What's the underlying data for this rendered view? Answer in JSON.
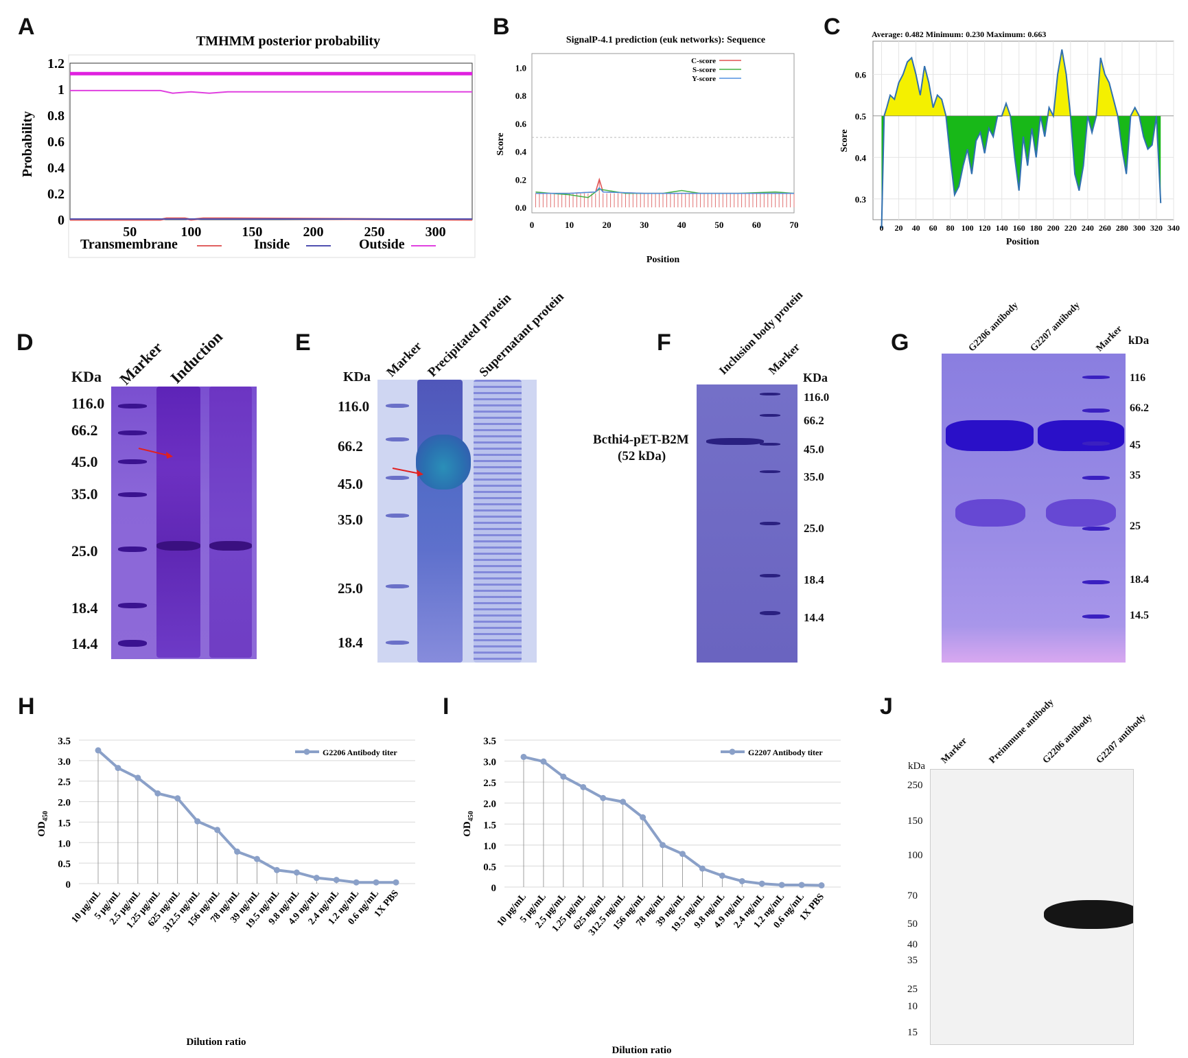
{
  "panels": {
    "A": {
      "label": "A",
      "title": "TMHMM posterior probability",
      "ylabel": "Probability",
      "legend": [
        "Transmembrane",
        "Inside",
        "Outside"
      ]
    },
    "B": {
      "label": "B",
      "title": "SignalP-4.1 prediction (euk networks): Sequence",
      "xlabel": "Position",
      "ylabel": "Score",
      "legend": [
        "C-score",
        "S-score",
        "Y-score"
      ]
    },
    "C": {
      "label": "C",
      "stats": "Average: 0.482  Minimum: 0.230  Maximum: 0.663",
      "xlabel": "Position",
      "ylabel": "Score"
    },
    "D": {
      "label": "D",
      "unit": "KDa",
      "lanes": [
        "Marker",
        "Induction"
      ],
      "mw": [
        "116.0",
        "66.2",
        "45.0",
        "35.0",
        "25.0",
        "18.4",
        "14.4"
      ]
    },
    "E": {
      "label": "E",
      "unit": "KDa",
      "lanes": [
        "Marker",
        "Precipitated protein",
        "Supernatant protein"
      ],
      "mw": [
        "116.0",
        "66.2",
        "45.0",
        "35.0",
        "25.0",
        "18.4"
      ]
    },
    "F": {
      "label": "F",
      "unit": "KDa",
      "lanes": [
        "Inclusion body protein",
        "Marker"
      ],
      "band_label": "Bcthi4-pET-B2M",
      "band_sub": "(52 kDa)",
      "mw": [
        "116.0",
        "66.2",
        "45.0",
        "35.0",
        "25.0",
        "18.4",
        "14.4"
      ]
    },
    "G": {
      "label": "G",
      "unit": "kDa",
      "lanes": [
        "G2206 antibody",
        "G2207 antibody",
        "Marker"
      ],
      "mw": [
        "116",
        "66.2",
        "45",
        "35",
        "25",
        "18.4",
        "14.5"
      ]
    },
    "H": {
      "label": "H",
      "xlabel": "Dilution ratio",
      "ylabel": "OD",
      "ylabel_sub": "450",
      "legend": "G2206 Antibody titer"
    },
    "I": {
      "label": "I",
      "xlabel": "Dilution ratio",
      "ylabel": "OD",
      "ylabel_sub": "450",
      "legend": "G2207 Antibody titer"
    },
    "J": {
      "label": "J",
      "unit": "kDa",
      "lanes": [
        "Marker",
        "Preimmune antibody",
        "G2206 antibody",
        "G2207 antibody"
      ],
      "mw": [
        "250",
        "150",
        "100",
        "70",
        "50",
        "40",
        "35",
        "25",
        "10",
        "15"
      ]
    }
  },
  "chart_data": [
    {
      "panel": "A",
      "type": "line",
      "title": "TMHMM posterior probability",
      "ylabel": "Probability",
      "xlim": [
        1,
        330
      ],
      "ylim": [
        0,
        1.2
      ],
      "xticks": [
        50,
        100,
        150,
        200,
        250,
        300
      ],
      "yticks": [
        0,
        0.2,
        0.4,
        0.6,
        0.8,
        1,
        1.2
      ],
      "series": [
        {
          "name": "Transmembrane",
          "color": "#e06060",
          "x": [
            1,
            75,
            80,
            95,
            100,
            110,
            130,
            330
          ],
          "y": [
            0,
            0,
            0.01,
            0.01,
            0,
            0.01,
            0.01,
            0
          ]
        },
        {
          "name": "Inside",
          "color": "#5050b0",
          "x": [
            1,
            330
          ],
          "y": [
            0.005,
            0.005
          ]
        },
        {
          "name": "Outside",
          "color": "#e040e0",
          "x": [
            1,
            75,
            85,
            100,
            115,
            130,
            330
          ],
          "y": [
            0.99,
            0.99,
            0.97,
            0.98,
            0.97,
            0.98,
            0.98
          ]
        },
        {
          "name": "",
          "color": "#e020e0",
          "x": [
            1,
            330
          ],
          "y": [
            1.12,
            1.12
          ]
        }
      ]
    },
    {
      "panel": "B",
      "type": "line",
      "title": "SignalP-4.1 prediction (euk networks): Sequence",
      "xlabel": "Position",
      "ylabel": "Score",
      "xlim": [
        0,
        70
      ],
      "ylim": [
        0,
        1.1
      ],
      "xticks": [
        0,
        10,
        20,
        30,
        40,
        50,
        60,
        70
      ],
      "yticks": [
        0.0,
        0.2,
        0.4,
        0.6,
        0.8,
        1.0
      ],
      "threshold": 0.5,
      "series": [
        {
          "name": "C-score",
          "color": "#e05050",
          "x": [
            1,
            10,
            17,
            18,
            19,
            30,
            40,
            50,
            60,
            70
          ],
          "y": [
            0.1,
            0.1,
            0.11,
            0.2,
            0.11,
            0.1,
            0.1,
            0.1,
            0.1,
            0.1
          ]
        },
        {
          "name": "S-score",
          "color": "#40b040",
          "x": [
            1,
            5,
            10,
            15,
            18,
            25,
            35,
            40,
            45,
            55,
            65,
            70
          ],
          "y": [
            0.11,
            0.1,
            0.09,
            0.07,
            0.13,
            0.1,
            0.1,
            0.12,
            0.1,
            0.1,
            0.11,
            0.1
          ]
        },
        {
          "name": "Y-score",
          "color": "#5090e0",
          "x": [
            1,
            10,
            17,
            18,
            19,
            30,
            40,
            50,
            60,
            70
          ],
          "y": [
            0.1,
            0.1,
            0.11,
            0.14,
            0.11,
            0.1,
            0.1,
            0.1,
            0.1,
            0.1
          ]
        }
      ]
    },
    {
      "panel": "C",
      "type": "area",
      "xlabel": "Position",
      "ylabel": "Score",
      "xlim": [
        -10,
        340
      ],
      "ylim": [
        0.25,
        0.68
      ],
      "baseline": 0.5,
      "xticks": [
        0,
        20,
        40,
        60,
        80,
        100,
        120,
        140,
        160,
        180,
        200,
        220,
        240,
        260,
        280,
        300,
        320,
        340
      ],
      "yticks": [
        0.3,
        0.4,
        0.5,
        0.6
      ],
      "x": [
        0,
        3,
        6,
        10,
        15,
        20,
        25,
        30,
        35,
        40,
        45,
        50,
        55,
        60,
        65,
        70,
        75,
        80,
        85,
        90,
        95,
        100,
        105,
        110,
        115,
        120,
        125,
        130,
        135,
        140,
        145,
        150,
        155,
        160,
        165,
        170,
        175,
        180,
        185,
        190,
        195,
        200,
        205,
        210,
        215,
        220,
        225,
        230,
        235,
        240,
        245,
        250,
        255,
        260,
        265,
        270,
        275,
        280,
        285,
        290,
        295,
        300,
        305,
        310,
        315,
        320,
        325
      ],
      "y": [
        0.23,
        0.5,
        0.52,
        0.55,
        0.54,
        0.58,
        0.6,
        0.63,
        0.64,
        0.6,
        0.55,
        0.62,
        0.58,
        0.52,
        0.55,
        0.54,
        0.5,
        0.4,
        0.31,
        0.33,
        0.38,
        0.42,
        0.36,
        0.44,
        0.46,
        0.41,
        0.47,
        0.45,
        0.5,
        0.5,
        0.53,
        0.5,
        0.4,
        0.32,
        0.45,
        0.38,
        0.47,
        0.4,
        0.5,
        0.45,
        0.52,
        0.5,
        0.6,
        0.66,
        0.6,
        0.5,
        0.36,
        0.32,
        0.38,
        0.5,
        0.46,
        0.5,
        0.64,
        0.6,
        0.58,
        0.54,
        0.5,
        0.42,
        0.36,
        0.5,
        0.52,
        0.5,
        0.45,
        0.42,
        0.43,
        0.5,
        0.29
      ],
      "stats": {
        "average": 0.482,
        "minimum": 0.23,
        "maximum": 0.663
      }
    },
    {
      "panel": "H",
      "type": "line",
      "xlabel": "Dilution ratio",
      "ylabel": "OD450",
      "categories": [
        "10 μg/mL",
        "5 μg/mL",
        "2.5 μg/mL",
        "1.25 μg/mL",
        "625 ng/mL",
        "312.5 ng/mL",
        "156 ng/mL",
        "78 ng/mL",
        "39 ng/mL",
        "19.5 ng/mL",
        "9.8 ng/mL",
        "4.9 ng/mL",
        "2.4 ng/mL",
        "1.2 ng/mL",
        "0.6 ng/mL",
        "1X PBS"
      ],
      "ylim": [
        0,
        3.5
      ],
      "yticks": [
        "0",
        "0.5",
        "1.0",
        "1.5",
        "2.0",
        "2.5",
        "3.0",
        "3.5"
      ],
      "series": [
        {
          "name": "G2206 Antibody titer",
          "color": "#8aa0c8",
          "values": [
            3.25,
            2.82,
            2.58,
            2.2,
            2.08,
            1.52,
            1.31,
            0.78,
            0.6,
            0.33,
            0.27,
            0.14,
            0.09,
            0.03,
            0.03,
            0.03
          ]
        }
      ]
    },
    {
      "panel": "I",
      "type": "line",
      "xlabel": "Dilution ratio",
      "ylabel": "OD450",
      "categories": [
        "10 μg/mL",
        "5 μg/mL",
        "2.5 μg/mL",
        "1.25 μg/mL",
        "625 ng/mL",
        "312.5 ng/mL",
        "156 ng/mL",
        "78 ng/mL",
        "39 ng/mL",
        "19.5 ng/mL",
        "9.8 ng/mL",
        "4.9 ng/mL",
        "2.4 ng/mL",
        "1.2 ng/mL",
        "0.6 ng/mL",
        "1X PBS"
      ],
      "ylim": [
        0,
        3.5
      ],
      "yticks": [
        "0",
        "0.5",
        "1.0",
        "1.5",
        "2.0",
        "2.5",
        "3.0",
        "3.5"
      ],
      "series": [
        {
          "name": "G2207 Antibody titer",
          "color": "#8aa0c8",
          "values": [
            3.1,
            2.99,
            2.63,
            2.38,
            2.12,
            2.03,
            1.66,
            1.0,
            0.79,
            0.44,
            0.27,
            0.14,
            0.08,
            0.05,
            0.05,
            0.04
          ]
        }
      ]
    }
  ]
}
